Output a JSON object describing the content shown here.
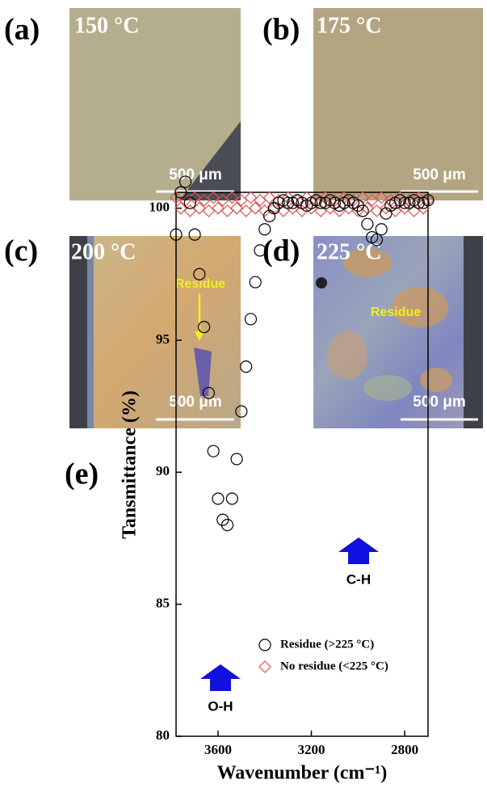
{
  "panels": [
    {
      "label": "(a)",
      "temperature": "150 °C",
      "scale": "500 μm"
    },
    {
      "label": "(b)",
      "temperature": "175 °C",
      "scale": "500 μm"
    },
    {
      "label": "(c)",
      "temperature": "200 °C",
      "scale": "500 μm",
      "annotation": "Residue"
    },
    {
      "label": "(d)",
      "temperature": "225 °C",
      "scale": "500 μm",
      "annotation": "Residue"
    }
  ],
  "chart_data": {
    "type": "scatter",
    "label": "(e)",
    "x_label": "Wavenumber (cm⁻¹)",
    "y_label": "Tansmittance (%)",
    "xlim": [
      3780,
      2700
    ],
    "ylim": [
      80,
      100.6
    ],
    "xticks": [
      3600,
      3200,
      2800
    ],
    "yticks": [
      80,
      85,
      90,
      95,
      100
    ],
    "annotations": [
      "O-H",
      "C-H"
    ],
    "x": [
      3780,
      3760,
      3740,
      3720,
      3700,
      3680,
      3660,
      3640,
      3620,
      3600,
      3580,
      3560,
      3540,
      3520,
      3500,
      3480,
      3460,
      3440,
      3420,
      3400,
      3380,
      3360,
      3340,
      3320,
      3300,
      3280,
      3260,
      3240,
      3220,
      3200,
      3180,
      3160,
      3140,
      3120,
      3100,
      3080,
      3060,
      3040,
      3020,
      3000,
      2980,
      2960,
      2940,
      2920,
      2900,
      2880,
      2860,
      2840,
      2820,
      2800,
      2780,
      2760,
      2740,
      2720,
      2700
    ],
    "series": [
      {
        "name": "Residue (>225 °C)",
        "color": "#000000",
        "marker": "circle",
        "values": [
          99.0,
          100.6,
          101.0,
          100.2,
          99.0,
          97.5,
          95.5,
          93.0,
          90.8,
          89.0,
          88.2,
          88.0,
          89.0,
          90.5,
          92.3,
          94.0,
          95.8,
          97.2,
          98.4,
          99.2,
          99.7,
          100.0,
          100.2,
          100.3,
          100.2,
          100.2,
          100.3,
          100.2,
          100.1,
          100.2,
          100.3,
          100.2,
          100.2,
          100.3,
          100.2,
          100.1,
          100.2,
          100.3,
          100.2,
          100.1,
          99.9,
          99.4,
          98.9,
          98.8,
          99.2,
          99.8,
          100.1,
          100.2,
          100.3,
          100.2,
          100.2,
          100.3,
          100.2,
          100.2,
          100.3
        ]
      },
      {
        "name": "No residue (<225 °C)",
        "color": "#e05050",
        "marker": "diamond",
        "values": [
          100.4,
          100.0,
          100.3,
          99.9,
          100.4,
          100.0,
          100.3,
          99.9,
          100.4,
          100.0,
          100.3,
          99.9,
          100.4,
          100.0,
          100.3,
          99.9,
          100.4,
          100.0,
          100.3,
          99.9,
          100.4,
          100.0,
          100.3,
          99.9,
          100.4,
          100.0,
          100.3,
          99.9,
          100.4,
          100.0,
          100.3,
          99.9,
          100.4,
          100.0,
          100.3,
          99.9,
          100.4,
          100.0,
          100.3,
          99.9,
          100.4,
          100.0,
          100.3,
          99.9,
          100.4,
          100.0,
          100.3,
          99.9,
          100.4,
          100.0,
          100.3,
          99.9,
          100.4,
          100.0,
          100.3
        ]
      }
    ]
  }
}
